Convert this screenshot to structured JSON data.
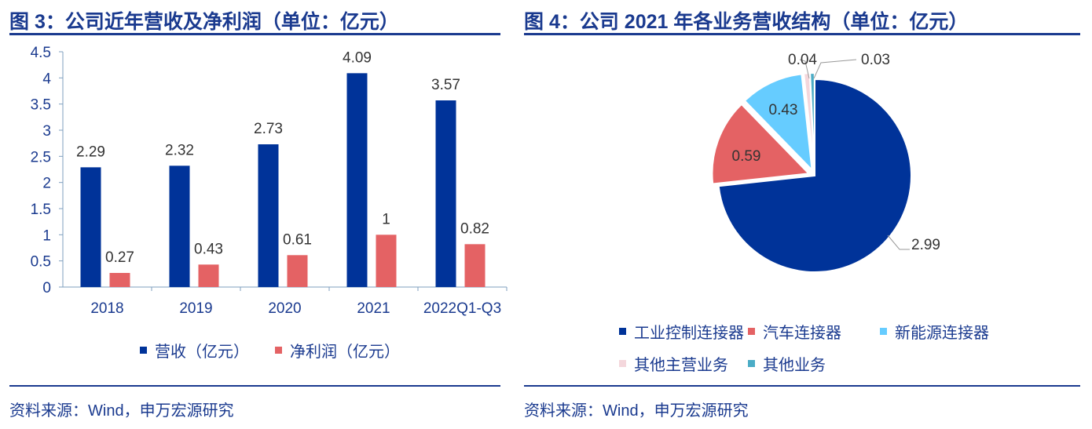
{
  "chart_data": [
    {
      "type": "bar",
      "title": "图 3：公司近年营收及净利润（单位：亿元）",
      "categories": [
        "2018",
        "2019",
        "2020",
        "2021",
        "2022Q1-Q3"
      ],
      "series": [
        {
          "name": "营收（亿元）",
          "values": [
            2.29,
            2.32,
            2.73,
            4.09,
            3.57
          ],
          "color": "#003399"
        },
        {
          "name": "净利润（亿元）",
          "values": [
            0.27,
            0.43,
            0.61,
            1,
            0.82
          ],
          "color": "#e46264"
        }
      ],
      "data_labels": [
        [
          "2.29",
          "2.32",
          "2.73",
          "4.09",
          "3.57"
        ],
        [
          "0.27",
          "0.43",
          "0.61",
          "1",
          "0.82"
        ]
      ],
      "ylim": [
        0,
        4.5
      ],
      "yticks": [
        "0",
        "0.5",
        "1",
        "1.5",
        "2",
        "2.5",
        "3",
        "3.5",
        "4",
        "4.5"
      ],
      "grid": false,
      "legend": "bottom",
      "source": "资料来源：Wind，申万宏源研究"
    },
    {
      "type": "pie",
      "title": "图 4：公司 2021 年各业务营收结构（单位：亿元）",
      "labels": [
        "工业控制连接器",
        "汽车连接器",
        "新能源连接器",
        "其他主营业务",
        "其他业务"
      ],
      "values": [
        2.99,
        0.59,
        0.43,
        0.04,
        0.03
      ],
      "data_labels": [
        "2.99",
        "0.59",
        "0.43",
        "0.04",
        "0.03"
      ],
      "colors": [
        "#003399",
        "#e46264",
        "#66ccff",
        "#f4d7dc",
        "#4bacc6"
      ],
      "legend": "bottom",
      "source": "资料来源：Wind，申万宏源研究"
    }
  ]
}
